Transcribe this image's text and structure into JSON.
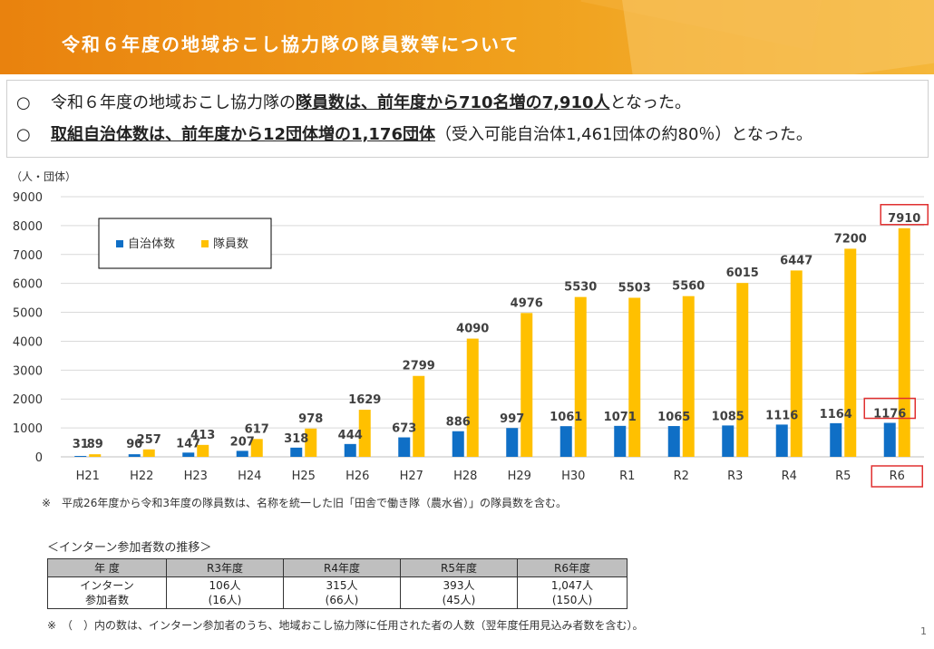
{
  "header": {
    "title": "令和６年度の地域おこし協力隊の隊員数等について"
  },
  "summary": {
    "bullet": "○",
    "line1": {
      "pre": "令和６年度の地域おこし協力隊の",
      "highlight": "隊員数は、前年度から710名増の7,910人",
      "post": "となった。"
    },
    "line2": {
      "highlight": "取組自治体数は、前年度から12団体増の1,176団体",
      "post": "（受入可能自治体1,461団体の約80％）となった。"
    }
  },
  "colors": {
    "municipalities": "#0f6fc6",
    "members": "#ffc000",
    "highlight_box": "#e03030",
    "banner": "#ef9316"
  },
  "chart_data": {
    "type": "bar",
    "unit_label": "（人・団体）",
    "categories": [
      "H21",
      "H22",
      "H23",
      "H24",
      "H25",
      "H26",
      "H27",
      "H28",
      "H29",
      "H30",
      "R1",
      "R2",
      "R3",
      "R4",
      "R5",
      "R6"
    ],
    "series": [
      {
        "name": "自治体数",
        "values": [
          31,
          90,
          147,
          207,
          318,
          444,
          673,
          886,
          997,
          1061,
          1071,
          1065,
          1085,
          1116,
          1164,
          1176
        ]
      },
      {
        "name": "隊員数",
        "values": [
          89,
          257,
          413,
          617,
          978,
          1629,
          2799,
          4090,
          4976,
          5530,
          5503,
          5560,
          6015,
          6447,
          7200,
          7910
        ]
      }
    ],
    "ylim": [
      0,
      9000
    ],
    "yticks": [
      0,
      1000,
      2000,
      3000,
      4000,
      5000,
      6000,
      7000,
      8000,
      9000
    ],
    "legend_position": "top-left",
    "highlighted_category": "R6"
  },
  "note1": "※　平成26年度から令和3年度の隊員数は、名称を統一した旧「田舎で働き隊（農水省）」の隊員数を含む。",
  "intern": {
    "title": "＜インターン参加者数の推移＞",
    "header": [
      "年 度",
      "R3年度",
      "R4年度",
      "R5年度",
      "R6年度"
    ],
    "row_label_line1": "インターン",
    "row_label_line2": "参加者数",
    "cells": [
      {
        "count": "106人",
        "appointed": "(16人)"
      },
      {
        "count": "315人",
        "appointed": "(66人)"
      },
      {
        "count": "393人",
        "appointed": "(45人)"
      },
      {
        "count": "1,047人",
        "appointed": "(150人)"
      }
    ]
  },
  "note2": "※　（　）内の数は、インターン参加者のうち、地域おこし協力隊に任用された者の人数（翌年度任用見込み者数を含む）。",
  "page_number": "1"
}
